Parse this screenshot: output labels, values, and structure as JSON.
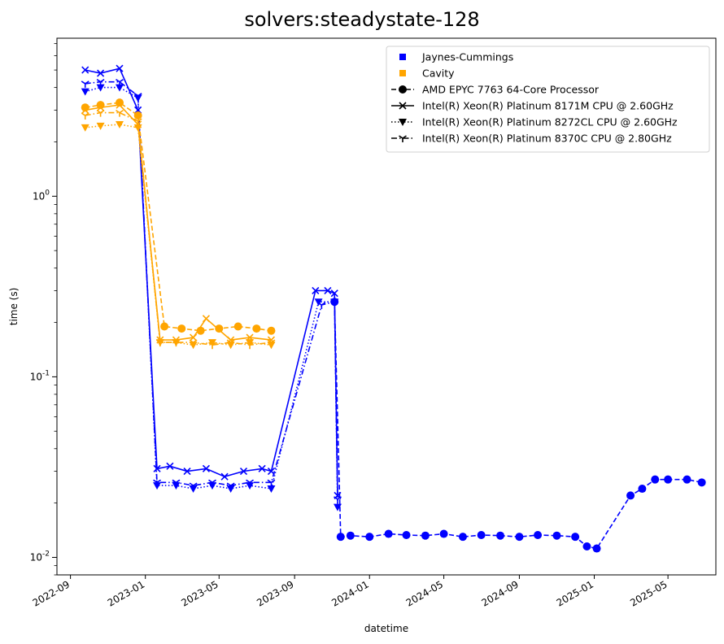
{
  "chart_data": {
    "type": "line",
    "title": "solvers:steadystate-128",
    "xlabel": "datetime",
    "ylabel": "time (s)",
    "y_scale": "log",
    "ylim": [
      0.008,
      7.5
    ],
    "xlim": [
      "2022-08-10",
      "2025-07-18"
    ],
    "grid": false,
    "legend_position": "top-right",
    "x_ticks": [
      "2022-09",
      "2023-01",
      "2023-05",
      "2023-09",
      "2024-01",
      "2024-05",
      "2024-09",
      "2025-01",
      "2025-05"
    ],
    "y_ticks": [
      {
        "value": 1,
        "label": "10^0"
      },
      {
        "value": 0.1,
        "label": "10^-1"
      },
      {
        "value": 0.01,
        "label": "10^-2"
      }
    ],
    "colors": {
      "Jaynes-Cummings": "#0000ff",
      "Cavity": "#ffa500"
    },
    "legend": [
      {
        "label": "Jaynes-Cummings",
        "kind": "color",
        "color": "#0000ff"
      },
      {
        "label": "Cavity",
        "kind": "color",
        "color": "#ffa500"
      },
      {
        "label": "AMD EPYC 7763 64-Core Processor",
        "kind": "cpu",
        "dash": "dashed",
        "marker": "circle"
      },
      {
        "label": "Intel(R) Xeon(R) Platinum 8171M CPU @ 2.60GHz",
        "kind": "cpu",
        "dash": "solid",
        "marker": "x"
      },
      {
        "label": "Intel(R) Xeon(R) Platinum 8272CL CPU @ 2.60GHz",
        "kind": "cpu",
        "dash": "dotted",
        "marker": "triangle-down"
      },
      {
        "label": "Intel(R) Xeon(R) Platinum 8370C CPU @ 2.80GHz",
        "kind": "cpu",
        "dash": "dashdot",
        "marker": "tri-down"
      }
    ],
    "series": [
      {
        "name": "Jaynes-Cummings",
        "cpu": "AMD EPYC 7763 64-Core Processor",
        "color": "#0000ff",
        "dash": "dashed",
        "marker": "circle",
        "x": [
          "2023-11-05",
          "2023-11-15",
          "2023-12-01",
          "2024-01-01",
          "2024-02-01",
          "2024-03-01",
          "2024-04-01",
          "2024-05-01",
          "2024-06-01",
          "2024-07-01",
          "2024-08-01",
          "2024-09-01",
          "2024-10-01",
          "2024-11-01",
          "2024-12-01",
          "2024-12-20",
          "2025-01-05",
          "2025-03-01",
          "2025-03-20",
          "2025-04-10",
          "2025-05-01",
          "2025-06-01",
          "2025-06-25"
        ],
        "y": [
          0.26,
          0.013,
          0.0132,
          0.013,
          0.0135,
          0.0133,
          0.0132,
          0.0135,
          0.013,
          0.0133,
          0.0132,
          0.013,
          0.0133,
          0.0132,
          0.013,
          0.0115,
          0.0112,
          0.022,
          0.024,
          0.027,
          0.027,
          0.027,
          0.026
        ]
      },
      {
        "name": "Jaynes-Cummings",
        "cpu": "Intel(R) Xeon(R) Platinum 8171M CPU @ 2.60GHz",
        "color": "#0000ff",
        "dash": "solid",
        "marker": "x",
        "x": [
          "2022-09-25",
          "2022-10-20",
          "2022-11-20",
          "2022-12-20",
          "2023-01-20",
          "2023-02-10",
          "2023-03-10",
          "2023-04-10",
          "2023-05-10",
          "2023-06-10",
          "2023-07-10",
          "2023-07-25",
          "2023-10-05",
          "2023-10-25",
          "2023-11-05",
          "2023-11-10"
        ],
        "y": [
          5.0,
          4.8,
          5.1,
          3.0,
          0.031,
          0.032,
          0.03,
          0.031,
          0.028,
          0.03,
          0.031,
          0.03,
          0.3,
          0.3,
          0.29,
          0.022
        ]
      },
      {
        "name": "Jaynes-Cummings",
        "cpu": "Intel(R) Xeon(R) Platinum 8272CL CPU @ 2.60GHz",
        "color": "#0000ff",
        "dash": "dotted",
        "marker": "triangle-down",
        "x": [
          "2022-09-25",
          "2022-10-20",
          "2022-11-20",
          "2022-12-20",
          "2023-01-20",
          "2023-02-20",
          "2023-03-20",
          "2023-04-20",
          "2023-05-20",
          "2023-06-20",
          "2023-07-25",
          "2023-10-10",
          "2023-11-05",
          "2023-11-10"
        ],
        "y": [
          3.8,
          4.0,
          4.0,
          3.5,
          0.025,
          0.025,
          0.024,
          0.025,
          0.024,
          0.025,
          0.024,
          0.26,
          0.26,
          0.019
        ]
      },
      {
        "name": "Jaynes-Cummings",
        "cpu": "Intel(R) Xeon(R) Platinum 8370C CPU @ 2.80GHz",
        "color": "#0000ff",
        "dash": "dashdot",
        "marker": "tri-down",
        "x": [
          "2022-09-25",
          "2022-10-20",
          "2022-11-20",
          "2022-12-20",
          "2023-01-20",
          "2023-02-20",
          "2023-03-20",
          "2023-04-20",
          "2023-05-20",
          "2023-06-20",
          "2023-07-25",
          "2023-10-15",
          "2023-11-05",
          "2023-11-10"
        ],
        "y": [
          4.2,
          4.3,
          4.3,
          3.6,
          0.026,
          0.026,
          0.025,
          0.026,
          0.025,
          0.026,
          0.026,
          0.25,
          0.26,
          0.021
        ]
      },
      {
        "name": "Cavity",
        "cpu": "AMD EPYC 7763 64-Core Processor",
        "color": "#ffa500",
        "dash": "dashed",
        "marker": "circle",
        "x": [
          "2022-09-25",
          "2022-10-20",
          "2022-11-20",
          "2022-12-20",
          "2023-02-01",
          "2023-03-01",
          "2023-04-01",
          "2023-05-01",
          "2023-06-01",
          "2023-07-01",
          "2023-07-25"
        ],
        "y": [
          3.1,
          3.2,
          3.3,
          2.8,
          0.19,
          0.185,
          0.18,
          0.185,
          0.19,
          0.185,
          0.18
        ]
      },
      {
        "name": "Cavity",
        "cpu": "Intel(R) Xeon(R) Platinum 8171M CPU @ 2.60GHz",
        "color": "#ffa500",
        "dash": "solid",
        "marker": "x",
        "x": [
          "2022-09-25",
          "2022-10-20",
          "2022-11-20",
          "2022-12-20",
          "2023-01-25",
          "2023-02-20",
          "2023-03-20",
          "2023-04-10",
          "2023-05-20",
          "2023-06-20",
          "2023-07-25"
        ],
        "y": [
          3.0,
          3.1,
          3.2,
          2.5,
          0.16,
          0.16,
          0.165,
          0.21,
          0.16,
          0.165,
          0.16
        ]
      },
      {
        "name": "Cavity",
        "cpu": "Intel(R) Xeon(R) Platinum 8272CL CPU @ 2.60GHz",
        "color": "#ffa500",
        "dash": "dotted",
        "marker": "triangle-down",
        "x": [
          "2022-09-25",
          "2022-10-20",
          "2022-11-20",
          "2022-12-20",
          "2023-01-25",
          "2023-02-20",
          "2023-03-20",
          "2023-04-20",
          "2023-05-20",
          "2023-06-20",
          "2023-07-25"
        ],
        "y": [
          2.4,
          2.45,
          2.5,
          2.4,
          0.155,
          0.155,
          0.15,
          0.155,
          0.15,
          0.155,
          0.15
        ]
      },
      {
        "name": "Cavity",
        "cpu": "Intel(R) Xeon(R) Platinum 8370C CPU @ 2.80GHz",
        "color": "#ffa500",
        "dash": "dashdot",
        "marker": "tri-down",
        "x": [
          "2022-09-25",
          "2022-10-20",
          "2022-11-20",
          "2022-12-20",
          "2023-01-25",
          "2023-02-20",
          "2023-03-20",
          "2023-04-20",
          "2023-05-20",
          "2023-06-20",
          "2023-07-25"
        ],
        "y": [
          2.8,
          2.9,
          2.9,
          2.6,
          0.155,
          0.155,
          0.155,
          0.15,
          0.155,
          0.15,
          0.155
        ]
      }
    ]
  }
}
